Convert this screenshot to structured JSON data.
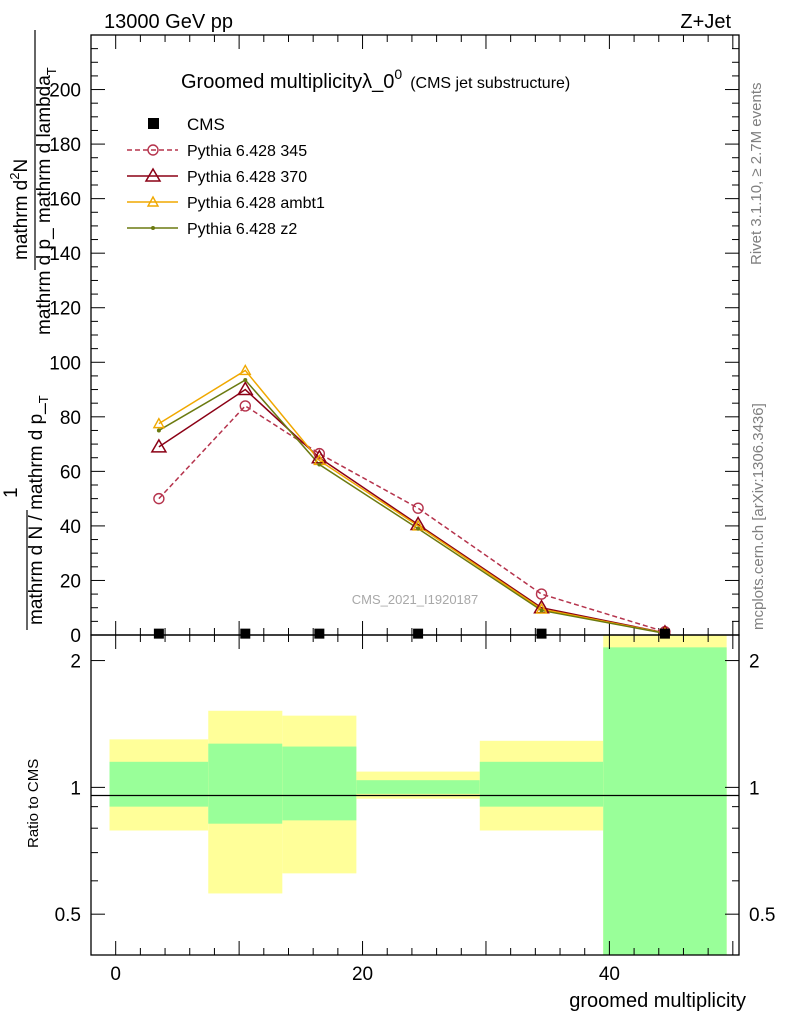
{
  "header": {
    "left": "13000 GeV pp",
    "right": "Z+Jet"
  },
  "side_labels": {
    "rivet": "Rivet 3.1.10, ≥ 2.7M events",
    "mcplots": "mcplots.cern.ch [arXiv:1306.3436]"
  },
  "chart_data": [
    {
      "type": "line",
      "title_main": "Groomed multiplicityλ_0",
      "title_sup": "0",
      "title_sub": "(CMS jet substructure)",
      "watermark": "CMS_2021_I1920187",
      "ylabel_numerator": "mathrm d",
      "ylabel_numerator_sup": "2",
      "ylabel_numerator_end": "N",
      "ylabel_denominator": "mathrm d p_ mathrm d lambda",
      "ylabel_denominator_sub": "T",
      "ylabel_fraction_1": "1",
      "ylabel_fraction_denominator": "mathrm d N / mathrm d p_",
      "ylabel_fraction_denominator_sub": "T",
      "ylim": [
        0,
        220
      ],
      "yticks": [
        0,
        20,
        40,
        60,
        80,
        100,
        120,
        140,
        160,
        180,
        200
      ],
      "xlim": [
        -2,
        50.5
      ],
      "legend_position": "top-left",
      "data": {
        "name": "CMS",
        "x": [
          3.5,
          10.5,
          16.5,
          24.5,
          34.5,
          44.5
        ],
        "y": [
          0.5,
          0.5,
          0.5,
          0.5,
          0.5,
          0.5
        ]
      },
      "series": [
        {
          "name": "Pythia 6.428 345",
          "color": "#b5334c",
          "marker": "circle",
          "dashed": true,
          "x": [
            3.5,
            10.5,
            16.5,
            24.5,
            34.5,
            44.5
          ],
          "y": [
            50,
            84,
            66.5,
            46.5,
            15,
            1.2
          ]
        },
        {
          "name": "Pythia 6.428 370",
          "color": "#8b0015",
          "marker": "triangle",
          "dashed": false,
          "x": [
            3.5,
            10.5,
            16.5,
            24.5,
            34.5,
            44.5
          ],
          "y": [
            69,
            90,
            65,
            40.5,
            10,
            0.8
          ]
        },
        {
          "name": "Pythia 6.428 ambt1",
          "color": "#f0a800",
          "marker": "triangle-small",
          "dashed": false,
          "x": [
            3.5,
            10.5,
            16.5,
            24.5,
            34.5,
            44.5
          ],
          "y": [
            77.5,
            97,
            64,
            40,
            9.5,
            0.7
          ]
        },
        {
          "name": "Pythia 6.428 z2",
          "color": "#6b7a10",
          "marker": "dot",
          "dashed": false,
          "x": [
            3.5,
            10.5,
            16.5,
            24.5,
            34.5,
            44.5
          ],
          "y": [
            75,
            93.5,
            62.5,
            39,
            9,
            0.6
          ]
        }
      ]
    },
    {
      "type": "ratio-bands",
      "ylabel": "Ratio to CMS",
      "xlabel": "groomed multiplicity",
      "scale": "log",
      "ylim": [
        0.4,
        2.3
      ],
      "yticks": [
        0.5,
        1,
        2
      ],
      "xticks": [
        0,
        20,
        40
      ],
      "reference": 1,
      "bins": [
        {
          "x0": -0.5,
          "x1": 7.5,
          "inner": [
            0.9,
            1.15
          ],
          "outer": [
            0.79,
            1.3
          ]
        },
        {
          "x0": 7.5,
          "x1": 13.5,
          "inner": [
            0.82,
            1.27
          ],
          "outer": [
            0.56,
            1.52
          ]
        },
        {
          "x0": 13.5,
          "x1": 19.5,
          "inner": [
            0.835,
            1.25
          ],
          "outer": [
            0.625,
            1.48
          ]
        },
        {
          "x0": 19.5,
          "x1": 29.5,
          "inner": [
            0.965,
            1.04
          ],
          "outer": [
            0.94,
            1.09
          ]
        },
        {
          "x0": 29.5,
          "x1": 39.5,
          "inner": [
            0.9,
            1.15
          ],
          "outer": [
            0.79,
            1.29
          ]
        },
        {
          "x0": 39.5,
          "x1": 49.5,
          "inner": [
            0.4,
            2.15
          ],
          "outer": [
            0.4,
            2.3
          ]
        }
      ]
    }
  ]
}
